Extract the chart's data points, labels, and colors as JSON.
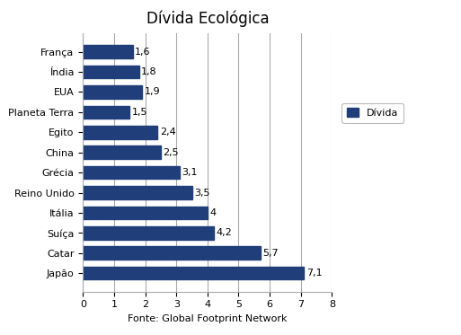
{
  "title": "Dívida Ecológica",
  "xlabel": "Fonte: Global Footprint Network",
  "legend_label": "Dívida",
  "categories": [
    "Japão",
    "Catar",
    "Suíça",
    "Itália",
    "Reino Unido",
    "Grécia",
    "China",
    "Egito",
    "Planeta Terra",
    "EUA",
    "Índia",
    "França"
  ],
  "values": [
    7.1,
    5.7,
    4.2,
    4.0,
    3.5,
    3.1,
    2.5,
    2.4,
    1.5,
    1.9,
    1.8,
    1.6
  ],
  "bar_color": "#1F3E7A",
  "xlim": [
    0,
    8
  ],
  "xticks": [
    0,
    1,
    2,
    3,
    4,
    5,
    6,
    7,
    8
  ],
  "value_labels": [
    "7,1",
    "5,7",
    "4,2",
    "4",
    "3,5",
    "3,1",
    "2,5",
    "2,4",
    "1,5",
    "1,9",
    "1,8",
    "1,6"
  ],
  "background_color": "#ffffff",
  "grid_color": "#aaaaaa",
  "title_fontsize": 12,
  "label_fontsize": 8,
  "tick_fontsize": 8,
  "bar_height": 0.65
}
